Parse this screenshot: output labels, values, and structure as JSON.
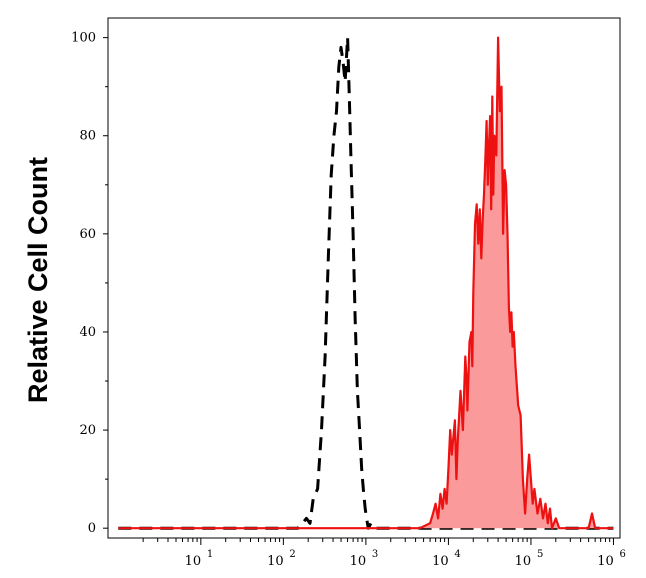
{
  "chart_data": {
    "type": "area",
    "title": "",
    "xlabel": "",
    "ylabel": "Relative Cell Count",
    "xscale": "log",
    "xlim": [
      0.75,
      1200000
    ],
    "ylim": [
      -2,
      104
    ],
    "grid": false,
    "x_ticks": [
      {
        "value": 10,
        "base": "10",
        "exp": "1"
      },
      {
        "value": 100,
        "base": "10",
        "exp": "2"
      },
      {
        "value": 1000,
        "base": "10",
        "exp": "3"
      },
      {
        "value": 10000,
        "base": "10",
        "exp": "4"
      },
      {
        "value": 100000,
        "base": "10",
        "exp": "5"
      },
      {
        "value": 1000000,
        "base": "10",
        "exp": "6"
      }
    ],
    "y_ticks": [
      0,
      20,
      40,
      60,
      80,
      100
    ],
    "series": [
      {
        "style": "dashed-black-line",
        "color": "#000000",
        "fill": "none",
        "points": [
          [
            1,
            0
          ],
          [
            100,
            0
          ],
          [
            150,
            0
          ],
          [
            170,
            1
          ],
          [
            190,
            2
          ],
          [
            210,
            1
          ],
          [
            230,
            6
          ],
          [
            260,
            8
          ],
          [
            290,
            20
          ],
          [
            320,
            35
          ],
          [
            350,
            55
          ],
          [
            380,
            72
          ],
          [
            410,
            80
          ],
          [
            440,
            85
          ],
          [
            470,
            94
          ],
          [
            500,
            98
          ],
          [
            530,
            95
          ],
          [
            560,
            91
          ],
          [
            600,
            100
          ],
          [
            630,
            88
          ],
          [
            660,
            75
          ],
          [
            700,
            60
          ],
          [
            740,
            43
          ],
          [
            790,
            28
          ],
          [
            840,
            20
          ],
          [
            890,
            12
          ],
          [
            930,
            8
          ],
          [
            980,
            4
          ],
          [
            1020,
            2
          ],
          [
            1070,
            0
          ],
          [
            1150,
            1
          ],
          [
            1300,
            0
          ],
          [
            1000000,
            0
          ]
        ]
      },
      {
        "style": "solid-red-filled",
        "color": "#ee1111",
        "fill": "#fb9a9a",
        "points": [
          [
            1,
            0
          ],
          [
            1000,
            0
          ],
          [
            4500,
            0
          ],
          [
            6000,
            1
          ],
          [
            6500,
            3
          ],
          [
            7000,
            5
          ],
          [
            7500,
            2
          ],
          [
            8000,
            7
          ],
          [
            8500,
            4
          ],
          [
            9000,
            8
          ],
          [
            9500,
            5
          ],
          [
            10000,
            12
          ],
          [
            10500,
            20
          ],
          [
            11000,
            15
          ],
          [
            12000,
            22
          ],
          [
            12500,
            10
          ],
          [
            13000,
            18
          ],
          [
            14000,
            28
          ],
          [
            15000,
            20
          ],
          [
            16000,
            35
          ],
          [
            16500,
            31
          ],
          [
            17000,
            24
          ],
          [
            18000,
            38
          ],
          [
            19000,
            40
          ],
          [
            19500,
            33
          ],
          [
            20000,
            48
          ],
          [
            21000,
            62
          ],
          [
            22000,
            66
          ],
          [
            23000,
            58
          ],
          [
            24000,
            65
          ],
          [
            25000,
            55
          ],
          [
            26000,
            63
          ],
          [
            27000,
            68
          ],
          [
            28000,
            75
          ],
          [
            29000,
            83
          ],
          [
            30000,
            70
          ],
          [
            31000,
            78
          ],
          [
            32000,
            84
          ],
          [
            33000,
            65
          ],
          [
            34000,
            88
          ],
          [
            35000,
            68
          ],
          [
            36000,
            80
          ],
          [
            38000,
            76
          ],
          [
            40000,
            100
          ],
          [
            42000,
            85
          ],
          [
            44000,
            90
          ],
          [
            46000,
            60
          ],
          [
            48000,
            73
          ],
          [
            50000,
            70
          ],
          [
            52000,
            60
          ],
          [
            54000,
            45
          ],
          [
            56000,
            40
          ],
          [
            58000,
            44
          ],
          [
            60000,
            37
          ],
          [
            62000,
            40
          ],
          [
            65000,
            33
          ],
          [
            70000,
            25
          ],
          [
            75000,
            23
          ],
          [
            80000,
            10
          ],
          [
            85000,
            3
          ],
          [
            90000,
            10
          ],
          [
            95000,
            15
          ],
          [
            100000,
            10
          ],
          [
            105000,
            5
          ],
          [
            110000,
            8
          ],
          [
            120000,
            3
          ],
          [
            130000,
            6
          ],
          [
            140000,
            2
          ],
          [
            150000,
            5
          ],
          [
            160000,
            1
          ],
          [
            170000,
            4
          ],
          [
            180000,
            0
          ],
          [
            200000,
            2
          ],
          [
            220000,
            0
          ],
          [
            300000,
            0
          ],
          [
            500000,
            0
          ],
          [
            550000,
            3
          ],
          [
            600000,
            0
          ],
          [
            1000000,
            0
          ]
        ]
      }
    ]
  }
}
